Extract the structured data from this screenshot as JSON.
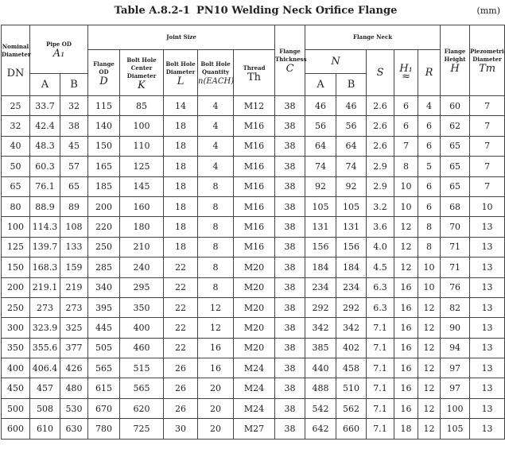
{
  "title": {
    "table_no": "Table A.8.2-1",
    "name": "PN10  Welding Neck Orifice Flange",
    "unit": "(mm)"
  },
  "headers": {
    "nominal": "Nominal Diameter",
    "dn": "DN",
    "pipe_od": "Pipe OD",
    "pipe_sym": "A₁",
    "a": "A",
    "b": "B",
    "joint": "Joint Size",
    "flange_od": "Flange OD",
    "d": "D",
    "bolt_center": "Bolt Hole Center Diameter",
    "k": "K",
    "bolt_dia": "Bolt Hole Diameter",
    "l": "L",
    "bolt_qty": "Bolt Hole Quantity",
    "n": "n(EACH)",
    "thread": "Thread",
    "th": "Th",
    "thickness": "Flange Thickness",
    "c": "C",
    "neck": "Flange Neck",
    "nsym": "N",
    "s": "S",
    "h1": "H₁ ≈",
    "r": "R",
    "height": "Flange Height",
    "h": "H",
    "piezo": "Piezometric Diameter",
    "t": "Tт"
  },
  "rows": [
    [
      "25",
      "33.7",
      "32",
      "115",
      "85",
      "14",
      "4",
      "M12",
      "38",
      "46",
      "46",
      "2.6",
      "6",
      "4",
      "60",
      "7"
    ],
    [
      "32",
      "42.4",
      "38",
      "140",
      "100",
      "18",
      "4",
      "M16",
      "38",
      "56",
      "56",
      "2.6",
      "6",
      "6",
      "62",
      "7"
    ],
    [
      "40",
      "48.3",
      "45",
      "150",
      "110",
      "18",
      "4",
      "M16",
      "38",
      "64",
      "64",
      "2.6",
      "7",
      "6",
      "65",
      "7"
    ],
    [
      "50",
      "60.3",
      "57",
      "165",
      "125",
      "18",
      "4",
      "M16",
      "38",
      "74",
      "74",
      "2.9",
      "8",
      "5",
      "65",
      "7"
    ],
    [
      "65",
      "76.1",
      "65",
      "185",
      "145",
      "18",
      "8",
      "M16",
      "38",
      "92",
      "92",
      "2.9",
      "10",
      "6",
      "65",
      "7"
    ],
    [
      "80",
      "88.9",
      "89",
      "200",
      "160",
      "18",
      "8",
      "M16",
      "38",
      "105",
      "105",
      "3.2",
      "10",
      "6",
      "68",
      "10"
    ],
    [
      "100",
      "114.3",
      "108",
      "220",
      "180",
      "18",
      "8",
      "M16",
      "38",
      "131",
      "131",
      "3.6",
      "12",
      "8",
      "70",
      "13"
    ],
    [
      "125",
      "139.7",
      "133",
      "250",
      "210",
      "18",
      "8",
      "M16",
      "38",
      "156",
      "156",
      "4.0",
      "12",
      "8",
      "71",
      "13"
    ],
    [
      "150",
      "168.3",
      "159",
      "285",
      "240",
      "22",
      "8",
      "M20",
      "38",
      "184",
      "184",
      "4.5",
      "12",
      "10",
      "71",
      "13"
    ],
    [
      "200",
      "219.1",
      "219",
      "340",
      "295",
      "22",
      "8",
      "M20",
      "38",
      "234",
      "234",
      "6.3",
      "16",
      "10",
      "76",
      "13"
    ],
    [
      "250",
      "273",
      "273",
      "395",
      "350",
      "22",
      "12",
      "M20",
      "38",
      "292",
      "292",
      "6.3",
      "16",
      "12",
      "82",
      "13"
    ],
    [
      "300",
      "323.9",
      "325",
      "445",
      "400",
      "22",
      "12",
      "M20",
      "38",
      "342",
      "342",
      "7.1",
      "16",
      "12",
      "90",
      "13"
    ],
    [
      "350",
      "355.6",
      "377",
      "505",
      "460",
      "22",
      "16",
      "M20",
      "38",
      "385",
      "402",
      "7.1",
      "16",
      "12",
      "94",
      "13"
    ],
    [
      "400",
      "406.4",
      "426",
      "565",
      "515",
      "26",
      "16",
      "M24",
      "38",
      "440",
      "458",
      "7.1",
      "16",
      "12",
      "97",
      "13"
    ],
    [
      "450",
      "457",
      "480",
      "615",
      "565",
      "26",
      "20",
      "M24",
      "38",
      "488",
      "510",
      "7.1",
      "16",
      "12",
      "97",
      "13"
    ],
    [
      "500",
      "508",
      "530",
      "670",
      "620",
      "26",
      "20",
      "M24",
      "38",
      "542",
      "562",
      "7.1",
      "16",
      "12",
      "100",
      "13"
    ],
    [
      "600",
      "610",
      "630",
      "780",
      "725",
      "30",
      "20",
      "M27",
      "38",
      "642",
      "660",
      "7.1",
      "18",
      "12",
      "105",
      "13"
    ]
  ]
}
